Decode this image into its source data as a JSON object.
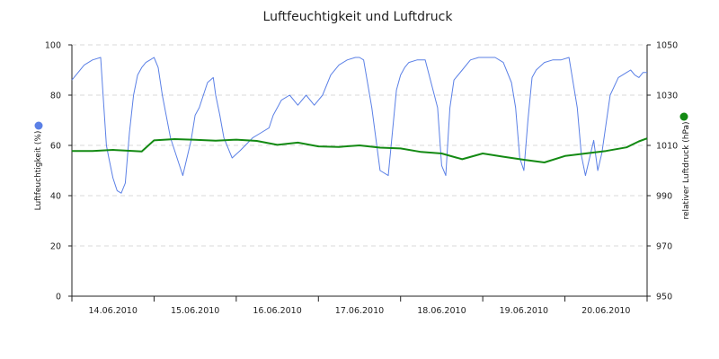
{
  "chart_data": {
    "type": "line",
    "title": "Luftfeuchtigkeit und Luftdruck",
    "x_categories": [
      "14.06.2010",
      "15.06.2010",
      "16.06.2010",
      "17.06.2010",
      "18.06.2010",
      "19.06.2010",
      "20.06.2010"
    ],
    "y_left": {
      "label": "Luftfeuchtigkeit (%)",
      "min": 0,
      "max": 100,
      "ticks": [
        "0",
        "20",
        "40",
        "60",
        "80",
        "100"
      ]
    },
    "y_right": {
      "label": "relativer Luftdruck (hPa)",
      "min": 950,
      "max": 1050,
      "ticks": [
        "950",
        "970",
        "990",
        "1010",
        "1030",
        "1050"
      ]
    },
    "grid": true,
    "series": [
      {
        "name": "Luftfeuchtigkeit",
        "axis": "left",
        "color": "#5b80e6",
        "x_days": [
          0,
          0.05,
          0.15,
          0.25,
          0.35,
          0.38,
          0.42,
          0.45,
          0.5,
          0.55,
          0.6,
          0.65,
          0.7,
          0.75,
          0.8,
          0.85,
          0.9,
          0.95,
          1.0,
          1.05,
          1.1,
          1.2,
          1.35,
          1.45,
          1.5,
          1.55,
          1.6,
          1.65,
          1.72,
          1.75,
          1.8,
          1.85,
          1.95,
          2.05,
          2.2,
          2.3,
          2.4,
          2.45,
          2.55,
          2.65,
          2.75,
          2.85,
          2.95,
          3.05,
          3.15,
          3.25,
          3.35,
          3.45,
          3.5,
          3.55,
          3.65,
          3.75,
          3.85,
          3.95,
          4.0,
          4.05,
          4.1,
          4.2,
          4.3,
          4.45,
          4.5,
          4.55,
          4.6,
          4.65,
          4.75,
          4.85,
          4.95,
          5.05,
          5.15,
          5.25,
          5.35,
          5.4,
          5.45,
          5.5,
          5.55,
          5.6,
          5.65,
          5.75,
          5.85,
          5.95,
          6.05,
          6.15,
          6.2,
          6.25,
          6.3,
          6.35,
          6.4,
          6.45,
          6.55,
          6.65,
          6.75,
          6.8,
          6.85,
          6.9,
          6.95,
          7.0
        ],
        "values": [
          86,
          88,
          92,
          94,
          95,
          80,
          60,
          55,
          47,
          42,
          41,
          45,
          65,
          80,
          88,
          91,
          93,
          94,
          95,
          91,
          80,
          63,
          48,
          62,
          72,
          75,
          80,
          85,
          87,
          80,
          72,
          63,
          55,
          58,
          63,
          65,
          67,
          72,
          78,
          80,
          76,
          80,
          76,
          80,
          88,
          92,
          94,
          95,
          95,
          94,
          75,
          50,
          48,
          82,
          88,
          91,
          93,
          94,
          94,
          75,
          52,
          48,
          75,
          86,
          90,
          94,
          95,
          95,
          95,
          93,
          85,
          75,
          55,
          50,
          70,
          87,
          90,
          93,
          94,
          94,
          95,
          75,
          56,
          48,
          55,
          62,
          50,
          57,
          80,
          87,
          89,
          90,
          88,
          87,
          89,
          89
        ]
      },
      {
        "name": "relativer Luftdruck",
        "axis": "right",
        "color": "#138a13",
        "x_days": [
          0,
          0.25,
          0.5,
          0.75,
          0.85,
          1.0,
          1.25,
          1.5,
          1.75,
          2.0,
          2.25,
          2.5,
          2.75,
          3.0,
          3.25,
          3.5,
          3.75,
          4.0,
          4.25,
          4.5,
          4.75,
          5.0,
          5.25,
          5.5,
          5.75,
          6.0,
          6.25,
          6.5,
          6.75,
          6.9,
          7.0
        ],
        "values": [
          1007.8,
          1007.8,
          1008.2,
          1007.8,
          1007.6,
          1012.0,
          1012.5,
          1012.2,
          1011.9,
          1012.3,
          1011.8,
          1010.2,
          1011.1,
          1009.6,
          1009.4,
          1010.0,
          1009.1,
          1008.8,
          1007.4,
          1006.8,
          1004.5,
          1006.8,
          1005.5,
          1004.3,
          1003.2,
          1005.8,
          1006.8,
          1007.8,
          1009.2,
          1011.6,
          1012.8
        ]
      }
    ]
  }
}
